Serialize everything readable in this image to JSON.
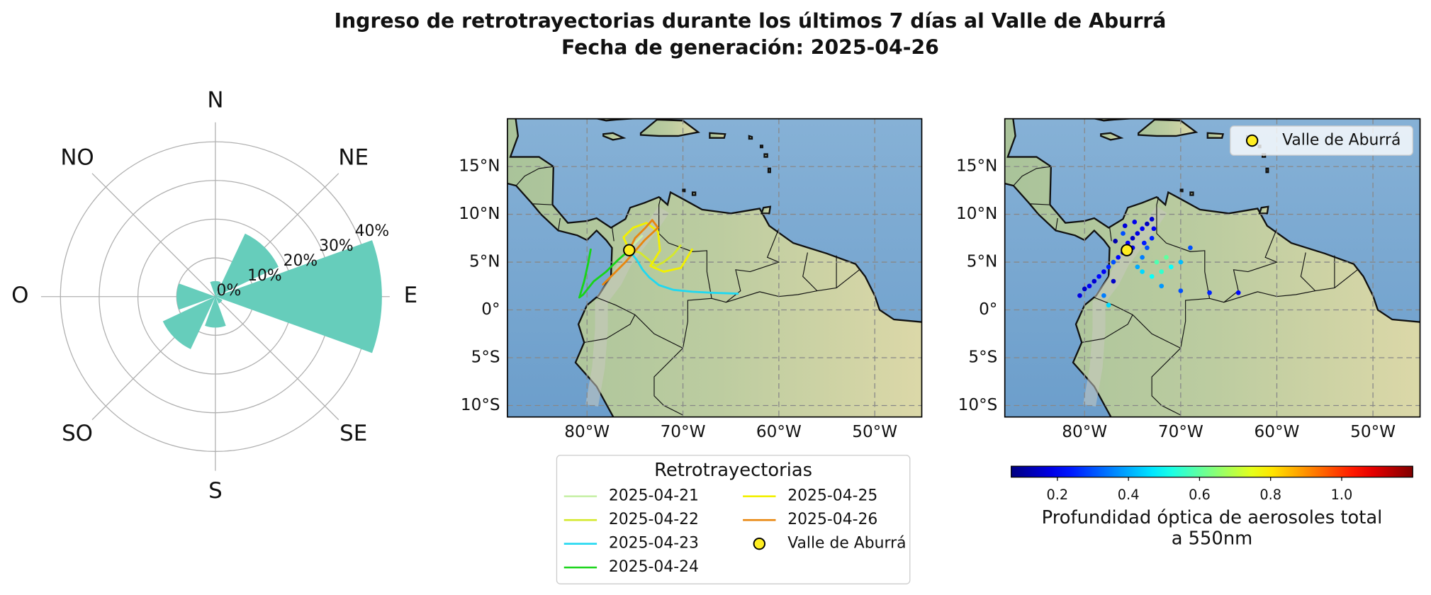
{
  "title": "Ingreso de retrotrayectorias durante los últimos 7 días al Valle de Aburrá",
  "subtitle": "Fecha de generación: 2025-04-26",
  "chart_data": [
    {
      "type": "polar_bar",
      "categories": [
        "N",
        "NE",
        "E",
        "SE",
        "S",
        "SO",
        "O",
        "NO"
      ],
      "values": [
        4,
        18,
        43,
        2,
        8,
        15,
        10,
        0
      ],
      "color": "#66cdbb",
      "rlim": [
        0,
        45
      ],
      "rticks": [
        {
          "value": 0,
          "label": "0%"
        },
        {
          "value": 10,
          "label": "10%"
        },
        {
          "value": 20,
          "label": "20%"
        },
        {
          "value": 30,
          "label": "30%"
        },
        {
          "value": 40,
          "label": "40%"
        }
      ],
      "grid": true
    },
    {
      "type": "line",
      "xlim": [
        -88.3,
        -45.1
      ],
      "ylim": [
        -11.2,
        20
      ],
      "xticks": [
        {
          "value": -80,
          "label": "80°W"
        },
        {
          "value": -70,
          "label": "70°W"
        },
        {
          "value": -60,
          "label": "60°W"
        },
        {
          "value": -50,
          "label": "50°W"
        }
      ],
      "yticks": [
        {
          "value": 15,
          "label": "15°N"
        },
        {
          "value": 10,
          "label": "10°N"
        },
        {
          "value": 5,
          "label": "5°N"
        },
        {
          "value": 0,
          "label": "0°"
        },
        {
          "value": -5,
          "label": "5°S"
        },
        {
          "value": -10,
          "label": "10°S"
        }
      ],
      "grid": true,
      "legend": {
        "title": "Retrotrayectorias",
        "position": "below"
      },
      "series": [
        {
          "name": "2025-04-21",
          "color": "#c8f0a8",
          "x": [
            -75.6,
            -75,
            -74.2
          ],
          "y": [
            6.25,
            7,
            7.8
          ]
        },
        {
          "name": "2025-04-22",
          "color": "#d4e82c",
          "x": [
            -75.6,
            -74.5,
            -73.5,
            -72.8,
            -72,
            -71,
            -70.2
          ],
          "y": [
            6.25,
            6,
            5.2,
            4.6,
            5,
            5.8,
            6.8
          ]
        },
        {
          "name": "2025-04-23",
          "color": "#20d8f0",
          "x": [
            -75.6,
            -74.8,
            -74.2,
            -73.5,
            -72.5,
            -71,
            -69,
            -67,
            -64.2
          ],
          "y": [
            6.25,
            5.2,
            4.2,
            3.4,
            2.6,
            2.1,
            1.9,
            1.8,
            1.7
          ]
        },
        {
          "name": "2025-04-24",
          "color": "#18d418",
          "x": [
            -75.6,
            -76.8,
            -78,
            -79.3,
            -80.4,
            -80.8,
            -80.3,
            -79.9,
            -79.6
          ],
          "y": [
            6.25,
            5.2,
            4,
            3,
            1.6,
            1.3,
            3,
            4.8,
            6.4
          ]
        },
        {
          "name": "2025-04-25",
          "color": "#f2f000",
          "x": [
            -75.6,
            -76.2,
            -75.2,
            -73.8,
            -72.6,
            -72.4,
            -73.4,
            -72,
            -70.2,
            -69
          ],
          "y": [
            6.25,
            7.6,
            8.6,
            9.1,
            8.2,
            6.2,
            4.6,
            4,
            4.4,
            6.4
          ]
        },
        {
          "name": "2025-04-26",
          "color": "#e8860e",
          "x": [
            -75.6,
            -75,
            -74,
            -73.2,
            -72.6,
            -74,
            -76,
            -77.4,
            -78.4
          ],
          "y": [
            6.25,
            7.5,
            8.5,
            9.4,
            8.6,
            7.3,
            5,
            3.6,
            2.6
          ]
        }
      ],
      "point": {
        "name": "Valle de Aburrá",
        "x": -75.6,
        "y": 6.25,
        "color": "#ffee22"
      }
    },
    {
      "type": "scatter",
      "xlim": [
        -88.3,
        -45.1
      ],
      "ylim": [
        -11.2,
        20
      ],
      "xticks": [
        {
          "value": -80,
          "label": "80°W"
        },
        {
          "value": -70,
          "label": "70°W"
        },
        {
          "value": -60,
          "label": "60°W"
        },
        {
          "value": -50,
          "label": "50°W"
        }
      ],
      "yticks": [
        {
          "value": 15,
          "label": "15°N"
        },
        {
          "value": 10,
          "label": "10°N"
        },
        {
          "value": 5,
          "label": "5°N"
        },
        {
          "value": 0,
          "label": "0°"
        },
        {
          "value": -5,
          "label": "5°S"
        },
        {
          "value": -10,
          "label": "10°S"
        }
      ],
      "grid": true,
      "legend": "upper right",
      "colormap": "jet",
      "clim": [
        0.07,
        1.2
      ],
      "x": [
        -80.5,
        -80,
        -79.5,
        -79,
        -78.5,
        -78,
        -77.5,
        -77,
        -76.5,
        -76,
        -75.5,
        -75,
        -74.5,
        -74,
        -73.5,
        -73,
        -72.8,
        -73,
        -73.5,
        -74,
        -74.5,
        -74,
        -73,
        -72,
        -71,
        -70,
        -69,
        -72,
        -70,
        -67,
        -64,
        -77.5,
        -78,
        -71.5,
        -72.5,
        -75,
        -76,
        -77,
        -76.8,
        -75.8,
        -74.8,
        -73.8
      ],
      "y": [
        1.5,
        2.2,
        2.5,
        3,
        3.5,
        4,
        4.5,
        5,
        5.5,
        6,
        7,
        7.5,
        8,
        8.5,
        9,
        9.5,
        8.5,
        7.5,
        6.5,
        5.5,
        4.5,
        4,
        3.5,
        4,
        4.5,
        5,
        6.5,
        2.5,
        2,
        1.8,
        1.8,
        0.5,
        1.5,
        5.5,
        5,
        6.5,
        8,
        3,
        7.2,
        8.8,
        9.2,
        7
      ],
      "values": [
        0.18,
        0.15,
        0.2,
        0.16,
        0.22,
        0.2,
        0.25,
        0.3,
        0.22,
        0.18,
        0.2,
        0.15,
        0.18,
        0.2,
        0.14,
        0.16,
        0.2,
        0.25,
        0.3,
        0.35,
        0.4,
        0.45,
        0.5,
        0.55,
        0.5,
        0.42,
        0.3,
        0.38,
        0.3,
        0.25,
        0.22,
        0.45,
        0.35,
        0.6,
        0.58,
        0.2,
        0.3,
        0.15,
        0.12,
        0.17,
        0.19,
        0.24
      ],
      "colorbar": {
        "label": [
          "Profundidad óptica de aerosoles total",
          "a 550nm"
        ],
        "ticks": [
          0.2,
          0.4,
          0.6,
          0.8,
          {
            "value": 1.0,
            "label": "1.0"
          }
        ]
      },
      "point": {
        "name": "Valle de Aburrá",
        "x": -75.6,
        "y": 6.25,
        "color": "#ffee22"
      }
    }
  ]
}
